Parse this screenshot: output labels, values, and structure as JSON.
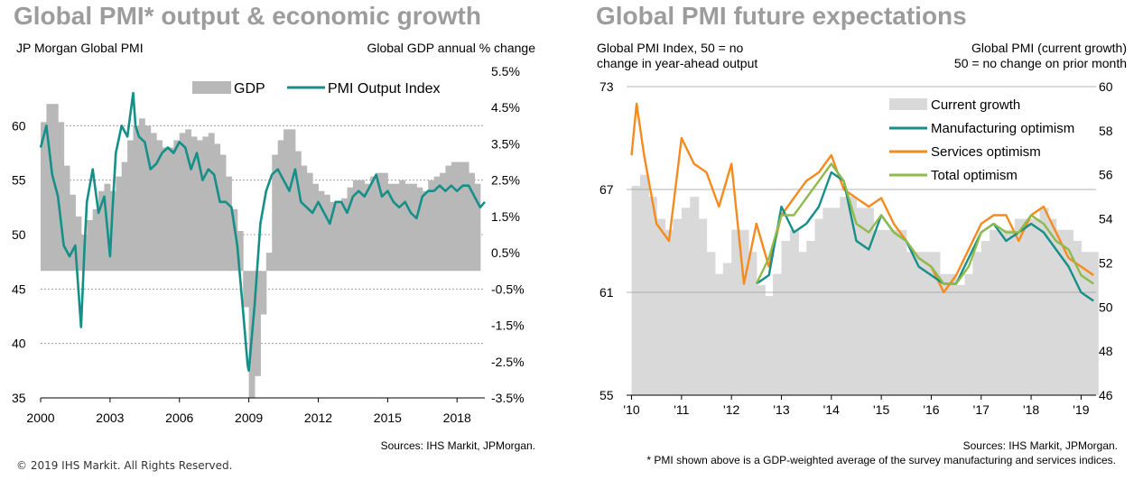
{
  "left": {
    "title": "Global PMI* output & economic growth",
    "left_axis_label": "JP Morgan Global PMI",
    "right_axis_label": "Global GDP annual % change",
    "source": "Sources: IHS Markit, JPMorgan."
  },
  "right": {
    "title": "Global PMI future expectations",
    "left_axis_label_1": "Global PMI Index, 50 = no",
    "left_axis_label_2": "change in year-ahead output",
    "right_axis_label_1": "Global PMI (current growth)",
    "right_axis_label_2": "50 = no change on prior month",
    "source": "Sources: IHS Markit, JPMorgan."
  },
  "copyright": "© 2019 IHS Markit. All Rights Reserved.",
  "footnote": "* PMI shown above is a GDP-weighted average of the survey manufacturing and services indices.",
  "colors": {
    "teal": "#158f88",
    "orange": "#f58a1f",
    "green": "#8fba4c",
    "gray": "#b8b8b8",
    "lightgray": "#d9d9d9"
  },
  "chart_data": [
    {
      "type": "line",
      "title": "Global PMI* output & economic growth",
      "ylabel": "JP Morgan Global PMI",
      "y2label": "Global GDP annual % change",
      "xlim": [
        2000,
        2019.2
      ],
      "ylim": [
        35,
        65
      ],
      "y2lim": [
        -3.5,
        5.5
      ],
      "x_ticks": [
        "2000",
        "2003",
        "2006",
        "2009",
        "2012",
        "2015",
        "2018"
      ],
      "y_ticks": [
        "35",
        "40",
        "45",
        "50",
        "55",
        "60"
      ],
      "y2_ticks": [
        "-3.5%",
        "-2.5%",
        "-1.5%",
        "-0.5%",
        "0.5%",
        "1.5%",
        "2.5%",
        "3.5%",
        "4.5%",
        "5.5%"
      ],
      "legend": [
        "GDP",
        "PMI Output Index"
      ],
      "legend_position": "top",
      "grid": "horizontal dashed",
      "series": [
        {
          "name": "GDP",
          "kind": "bar",
          "axis": "right",
          "x": [
            2000.0,
            2000.25,
            2000.5,
            2000.75,
            2001.0,
            2001.25,
            2001.5,
            2001.75,
            2002.0,
            2002.25,
            2002.5,
            2002.75,
            2003.0,
            2003.25,
            2003.5,
            2003.75,
            2004.0,
            2004.25,
            2004.5,
            2004.75,
            2005.0,
            2005.25,
            2005.5,
            2005.75,
            2006.0,
            2006.25,
            2006.5,
            2006.75,
            2007.0,
            2007.25,
            2007.5,
            2007.75,
            2008.0,
            2008.25,
            2008.5,
            2008.75,
            2009.0,
            2009.25,
            2009.5,
            2009.75,
            2010.0,
            2010.25,
            2010.5,
            2010.75,
            2011.0,
            2011.25,
            2011.5,
            2011.75,
            2012.0,
            2012.25,
            2012.5,
            2012.75,
            2013.0,
            2013.25,
            2013.5,
            2013.75,
            2014.0,
            2014.25,
            2014.5,
            2014.75,
            2015.0,
            2015.25,
            2015.5,
            2015.75,
            2016.0,
            2016.25,
            2016.5,
            2016.75,
            2017.0,
            2017.25,
            2017.5,
            2017.75,
            2018.0,
            2018.25,
            2018.5,
            2018.75
          ],
          "values": [
            4.1,
            4.6,
            4.6,
            4.1,
            2.9,
            2.1,
            1.5,
            1.0,
            1.4,
            1.7,
            2.2,
            2.4,
            2.2,
            2.6,
            3.0,
            3.6,
            4.0,
            4.2,
            4.0,
            3.8,
            3.6,
            3.4,
            3.4,
            3.6,
            3.8,
            3.9,
            3.7,
            3.6,
            3.7,
            3.8,
            3.5,
            3.2,
            2.6,
            1.7,
            1.1,
            -1.0,
            -3.5,
            -2.9,
            -1.2,
            0.5,
            3.2,
            3.6,
            3.9,
            3.9,
            3.3,
            2.9,
            2.7,
            2.4,
            2.2,
            2.1,
            1.9,
            1.9,
            2.0,
            2.3,
            2.5,
            2.5,
            2.4,
            2.6,
            2.7,
            2.7,
            2.4,
            2.4,
            2.5,
            2.4,
            2.4,
            2.3,
            2.2,
            2.5,
            2.6,
            2.7,
            2.9,
            3.0,
            3.0,
            3.0,
            2.7,
            2.4
          ]
        },
        {
          "name": "PMI Output Index",
          "kind": "line",
          "axis": "left",
          "x": [
            2000.0,
            2000.25,
            2000.5,
            2000.75,
            2001.0,
            2001.25,
            2001.5,
            2001.75,
            2001.9,
            2002.0,
            2002.25,
            2002.5,
            2002.75,
            2003.0,
            2003.1,
            2003.25,
            2003.5,
            2003.75,
            2004.0,
            2004.1,
            2004.25,
            2004.5,
            2004.75,
            2005.0,
            2005.25,
            2005.5,
            2005.75,
            2006.0,
            2006.25,
            2006.5,
            2006.75,
            2007.0,
            2007.25,
            2007.5,
            2007.75,
            2008.0,
            2008.25,
            2008.5,
            2008.75,
            2008.95,
            2009.0,
            2009.25,
            2009.5,
            2009.75,
            2010.0,
            2010.25,
            2010.5,
            2010.75,
            2011.0,
            2011.25,
            2011.5,
            2011.75,
            2012.0,
            2012.25,
            2012.5,
            2012.75,
            2013.0,
            2013.25,
            2013.5,
            2013.75,
            2014.0,
            2014.25,
            2014.5,
            2014.75,
            2015.0,
            2015.25,
            2015.5,
            2015.75,
            2016.0,
            2016.25,
            2016.5,
            2016.75,
            2017.0,
            2017.25,
            2017.5,
            2017.75,
            2018.0,
            2018.25,
            2018.5,
            2018.75,
            2019.0,
            2019.2
          ],
          "values": [
            58,
            60,
            55.5,
            53.5,
            49,
            48,
            49,
            41.5,
            49,
            53,
            56,
            52,
            53.5,
            48,
            52,
            57.5,
            60,
            59,
            63,
            60,
            59,
            58.5,
            56,
            56.5,
            57.5,
            58,
            57.5,
            58.5,
            58,
            56,
            57.5,
            55,
            56,
            55.5,
            53,
            53,
            52.5,
            49,
            43,
            38,
            37.5,
            43.5,
            51,
            54,
            55.5,
            56,
            55,
            54,
            56,
            53,
            52.5,
            52,
            53,
            52,
            51,
            53,
            53,
            52,
            53.5,
            54,
            53.5,
            54.5,
            55.5,
            53.5,
            54,
            53,
            52.5,
            53,
            52,
            51.5,
            53.5,
            54,
            54,
            54.5,
            54,
            54.5,
            54,
            54.5,
            54.5,
            53.5,
            52.5,
            53
          ]
        }
      ]
    },
    {
      "type": "line",
      "title": "Global PMI future expectations",
      "ylabel": "Global PMI Index, 50 = no change in year-ahead output",
      "y2label": "Global PMI (current growth) 50 = no change on prior month",
      "xlim": [
        2009.9,
        2019.3
      ],
      "ylim": [
        55,
        73
      ],
      "y2lim": [
        46,
        60
      ],
      "x_ticks": [
        "'10",
        "'11",
        "'12",
        "'13",
        "'14",
        "'15",
        "'16",
        "'17",
        "'18",
        "'19"
      ],
      "y_ticks": [
        "55",
        "61",
        "67",
        "73"
      ],
      "y2_ticks": [
        "46",
        "48",
        "50",
        "52",
        "54",
        "56",
        "58",
        "60"
      ],
      "legend": [
        "Current growth",
        "Manufacturing optimism",
        "Services optimism",
        "Total optimism"
      ],
      "legend_position": "top-right",
      "grid": "horizontal",
      "series": [
        {
          "name": "Current growth",
          "kind": "bar",
          "axis": "right",
          "x": [
            2010.0,
            2010.17,
            2010.33,
            2010.5,
            2010.67,
            2010.83,
            2011.0,
            2011.17,
            2011.33,
            2011.5,
            2011.67,
            2011.83,
            2012.0,
            2012.17,
            2012.33,
            2012.5,
            2012.67,
            2012.83,
            2013.0,
            2013.17,
            2013.33,
            2013.5,
            2013.67,
            2013.83,
            2014.0,
            2014.17,
            2014.33,
            2014.5,
            2014.67,
            2014.83,
            2015.0,
            2015.17,
            2015.33,
            2015.5,
            2015.67,
            2015.83,
            2016.0,
            2016.17,
            2016.33,
            2016.5,
            2016.67,
            2016.83,
            2017.0,
            2017.17,
            2017.33,
            2017.5,
            2017.67,
            2017.83,
            2018.0,
            2018.17,
            2018.33,
            2018.5,
            2018.67,
            2018.83,
            2019.0,
            2019.17
          ],
          "values": [
            55.5,
            56.0,
            55.0,
            54.0,
            53.5,
            54.0,
            54.5,
            55.0,
            54.0,
            52.5,
            51.5,
            52.0,
            53.5,
            53.5,
            52.5,
            51.0,
            50.5,
            51.5,
            53.0,
            53.5,
            52.5,
            53.0,
            54.0,
            54.5,
            54.5,
            55.0,
            55.0,
            54.5,
            54.5,
            53.5,
            53.5,
            53.5,
            53.5,
            52.5,
            52.5,
            52.5,
            52.5,
            51.5,
            51.5,
            51.0,
            51.5,
            52.5,
            53.0,
            53.5,
            53.5,
            53.5,
            54.0,
            54.0,
            54.0,
            54.5,
            54.0,
            53.5,
            53.5,
            53.0,
            52.5,
            52.5
          ]
        },
        {
          "name": "Manufacturing optimism",
          "axis": "left",
          "x": [
            2012.5,
            2012.75,
            2013.0,
            2013.25,
            2013.5,
            2013.75,
            2014.0,
            2014.25,
            2014.5,
            2014.75,
            2015.0,
            2015.25,
            2015.5,
            2015.75,
            2016.0,
            2016.25,
            2016.5,
            2016.75,
            2017.0,
            2017.25,
            2017.5,
            2017.75,
            2018.0,
            2018.25,
            2018.5,
            2018.75,
            2019.0,
            2019.25
          ],
          "values": [
            61.5,
            62,
            66,
            64.5,
            65,
            66,
            68,
            67.5,
            64,
            63.5,
            65.5,
            64.5,
            64,
            62.5,
            62,
            61.5,
            61.5,
            63,
            64.5,
            65,
            64,
            64.5,
            65,
            64.5,
            63.5,
            62.5,
            61,
            60.5
          ]
        },
        {
          "name": "Services optimism",
          "axis": "left",
          "x": [
            2010.0,
            2010.1,
            2010.25,
            2010.5,
            2010.75,
            2011.0,
            2011.25,
            2011.5,
            2011.75,
            2012.0,
            2012.25,
            2012.5,
            2012.75,
            2013.0,
            2013.25,
            2013.5,
            2013.75,
            2014.0,
            2014.25,
            2014.5,
            2014.75,
            2015.0,
            2015.25,
            2015.5,
            2015.75,
            2016.0,
            2016.25,
            2016.5,
            2016.75,
            2017.0,
            2017.25,
            2017.5,
            2017.75,
            2018.0,
            2018.25,
            2018.5,
            2018.75,
            2019.0,
            2019.25
          ],
          "values": [
            69,
            72,
            69,
            65,
            64,
            70,
            68.5,
            68,
            66,
            68.5,
            61.5,
            65,
            62.5,
            65.5,
            66.5,
            67.5,
            68,
            69,
            67,
            66.5,
            66,
            66.5,
            65,
            64,
            63,
            62.5,
            61,
            62,
            63.5,
            65,
            65.5,
            65.5,
            64,
            65.5,
            66,
            64.5,
            63,
            62.5,
            62
          ]
        },
        {
          "name": "Total optimism",
          "axis": "left",
          "x": [
            2012.5,
            2012.75,
            2013.0,
            2013.25,
            2013.5,
            2013.75,
            2014.0,
            2014.25,
            2014.5,
            2014.75,
            2015.0,
            2015.25,
            2015.5,
            2015.75,
            2016.0,
            2016.25,
            2016.5,
            2016.75,
            2017.0,
            2017.25,
            2017.5,
            2017.75,
            2018.0,
            2018.25,
            2018.5,
            2018.75,
            2019.0,
            2019.25
          ],
          "values": [
            61.5,
            63,
            65.5,
            65.5,
            66.5,
            67.5,
            68.5,
            67.5,
            65,
            64.5,
            65.5,
            64.5,
            64,
            63,
            62.5,
            61.5,
            61.5,
            62.5,
            64.5,
            65,
            64.5,
            64.5,
            65.5,
            65,
            64,
            63.5,
            62,
            61.5
          ]
        }
      ]
    }
  ]
}
